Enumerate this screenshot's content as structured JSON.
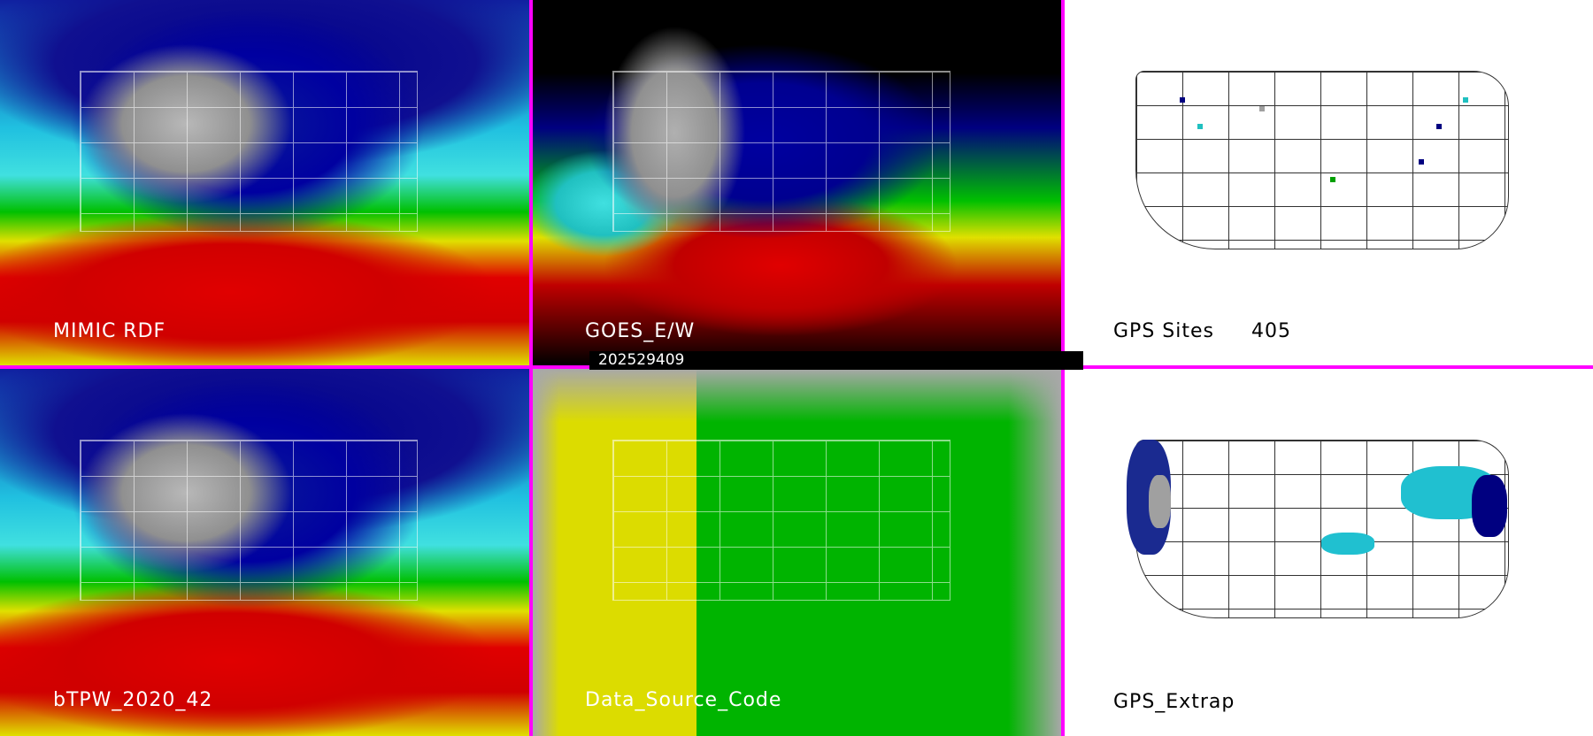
{
  "panels": [
    {
      "id": "mimic",
      "label": "MIMIC RDF"
    },
    {
      "id": "goes",
      "label": "GOES_E/W",
      "timestamp": "202529409"
    },
    {
      "id": "gps-sites",
      "label": "GPS Sites",
      "count": "405"
    },
    {
      "id": "btpw",
      "label": "bTPW_2020_42"
    },
    {
      "id": "data-source",
      "label": "Data_Source_Code"
    },
    {
      "id": "gps-extrap",
      "label": "GPS_Extrap"
    }
  ],
  "colors": {
    "divider": "#ff00ff",
    "tpw_low": "#0000a0",
    "tpw_mid": "#40e0e0",
    "tpw_high": "#e00000",
    "source_yellow": "#dcdc00",
    "source_green": "#00b400",
    "source_gray": "#a8a8a8"
  }
}
